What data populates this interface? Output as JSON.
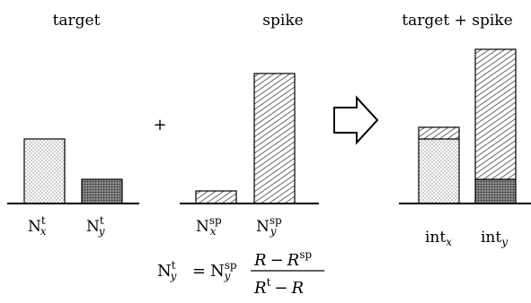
{
  "panels": {
    "target": {
      "title": "target",
      "label_x": "N",
      "label_x_sup": "t",
      "label_x_sub": "x",
      "label_y": "N",
      "label_y_sup": "t",
      "label_y_sub": "y"
    },
    "spike": {
      "title": "spike",
      "label_x": "N",
      "label_x_sup": "sp",
      "label_x_sub": "x",
      "label_y": "N",
      "label_y_sup": "sp",
      "label_y_sub": "y"
    },
    "mix": {
      "title": "target + spike",
      "label_x": "int",
      "label_x_sub": "x",
      "label_y": "int",
      "label_y_sub": "y"
    }
  },
  "operators": {
    "plus": "+"
  },
  "equation": {
    "lhs": "N",
    "lhs_sup": "t",
    "lhs_sub": "y",
    "eq": "=",
    "rhs_N": "N",
    "rhs_sup": "sp",
    "rhs_sub": "y",
    "num_R": "R",
    "minus": "−",
    "num_R2": "R",
    "num_sup": "sp",
    "den_R": "R",
    "den_sup": "t",
    "den_minus": "−",
    "den_R2": "R"
  },
  "colors": {
    "stroke": "#000000",
    "background": "#ffffff"
  }
}
